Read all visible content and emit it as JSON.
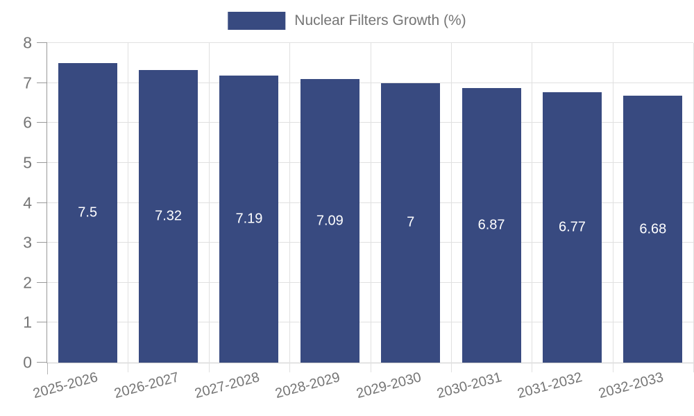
{
  "legend": {
    "label": "Nuclear Filters Growth (%)"
  },
  "chart_data": {
    "type": "bar",
    "title": "Nuclear Filters Growth (%)",
    "categories": [
      "2025-2026",
      "2026-2027",
      "2027-2028",
      "2028-2029",
      "2029-2030",
      "2030-2031",
      "2031-2032",
      "2032-2033"
    ],
    "values": [
      7.5,
      7.32,
      7.19,
      7.09,
      7,
      6.87,
      6.77,
      6.68
    ],
    "bar_labels": [
      "7.5",
      "7.32",
      "7.19",
      "7.09",
      "7",
      "6.87",
      "6.77",
      "6.68"
    ],
    "xlabel": "",
    "ylabel": "",
    "ylim": [
      0,
      8
    ],
    "yticks": [
      "0",
      "1",
      "2",
      "3",
      "4",
      "5",
      "6",
      "7",
      "8"
    ],
    "grid": true,
    "legend_position": "top",
    "bar_label_position": "center-inside",
    "colors": {
      "bar": "#384a80",
      "grid": "#e0e0e0",
      "axis": "#999999",
      "text": "#757575",
      "bar_label": "#ffffff"
    }
  }
}
